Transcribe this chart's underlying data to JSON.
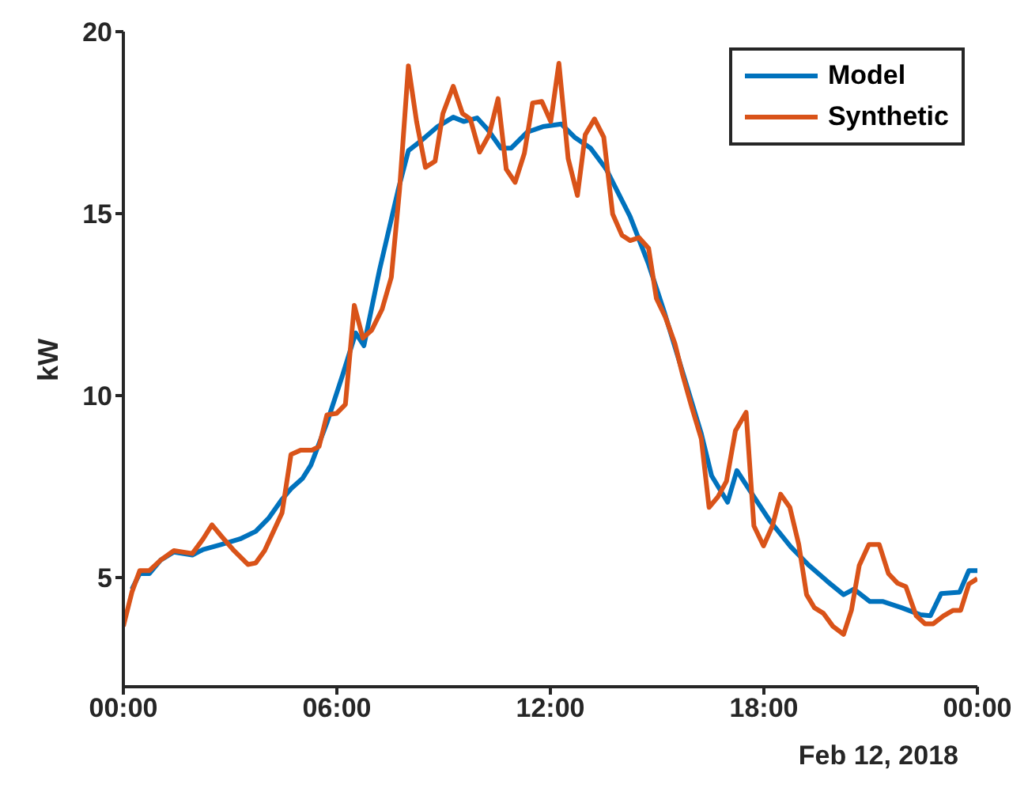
{
  "chart_data": {
    "type": "line",
    "xlabel": null,
    "ylabel": "kW",
    "annotations": [
      "Feb 12, 2018"
    ],
    "xlim": [
      0,
      24
    ],
    "xticks": [
      {
        "value": 0,
        "label": "00:00"
      },
      {
        "value": 6,
        "label": "06:00"
      },
      {
        "value": 12,
        "label": "12:00"
      },
      {
        "value": 18,
        "label": "18:00"
      },
      {
        "value": 24,
        "label": "00:00"
      }
    ],
    "ylim": [
      2,
      20
    ],
    "yticks": [
      5,
      10,
      15,
      20
    ],
    "grid": false,
    "legend": "top right",
    "marker": "none",
    "line_style": "solid",
    "series": [
      {
        "name": "Model",
        "color": "#0072bd",
        "x": [
          0.24,
          0.46,
          0.73,
          1.05,
          1.42,
          1.94,
          2.24,
          2.76,
          3.28,
          3.72,
          4.09,
          4.46,
          4.71,
          5.04,
          5.27,
          5.72,
          6.16,
          6.53,
          6.76,
          7.2,
          7.72,
          8.01,
          8.39,
          8.83,
          9.27,
          9.57,
          9.94,
          10.24,
          10.61,
          10.9,
          11.35,
          11.79,
          12.31,
          12.68,
          13.13,
          13.57,
          14.24,
          14.76,
          15.2,
          15.79,
          16.24,
          16.53,
          16.98,
          17.24,
          17.72,
          18.16,
          18.76,
          19.27,
          19.79,
          20.24,
          20.53,
          20.98,
          21.35,
          21.87,
          22.39,
          22.68,
          22.98,
          23.5,
          23.76,
          24
        ],
        "values": [
          4.68,
          5.11,
          5.11,
          5.48,
          5.7,
          5.62,
          5.77,
          5.91,
          6.06,
          6.27,
          6.64,
          7.15,
          7.44,
          7.73,
          8.09,
          9.25,
          10.56,
          11.72,
          11.37,
          13.46,
          15.64,
          16.73,
          17.02,
          17.39,
          17.65,
          17.53,
          17.63,
          17.31,
          16.8,
          16.8,
          17.24,
          17.39,
          17.46,
          17.1,
          16.8,
          16.22,
          14.92,
          13.61,
          12.3,
          10.41,
          8.96,
          7.8,
          7.07,
          7.94,
          7.22,
          6.57,
          5.84,
          5.33,
          4.89,
          4.53,
          4.68,
          4.34,
          4.34,
          4.17,
          3.98,
          3.95,
          4.56,
          4.6,
          5.19,
          5.19
        ]
      },
      {
        "name": "Synthetic",
        "color": "#d95319",
        "x": [
          0,
          0.24,
          0.46,
          0.73,
          1.05,
          1.42,
          1.94,
          2.24,
          2.49,
          2.76,
          3.08,
          3.5,
          3.72,
          3.97,
          4.46,
          4.71,
          4.98,
          5.3,
          5.5,
          5.72,
          5.99,
          6.24,
          6.49,
          6.73,
          6.98,
          7.27,
          7.53,
          7.76,
          8.01,
          8.24,
          8.49,
          8.76,
          8.98,
          9.27,
          9.53,
          9.75,
          10.01,
          10.28,
          10.53,
          10.76,
          11.01,
          11.27,
          11.5,
          11.76,
          12.01,
          12.24,
          12.5,
          12.76,
          12.98,
          13.24,
          13.5,
          13.75,
          14.01,
          14.24,
          14.49,
          14.76,
          14.98,
          15.23,
          15.5,
          15.72,
          15.97,
          16.24,
          16.46,
          16.71,
          16.95,
          17.2,
          17.5,
          17.72,
          17.99,
          18.24,
          18.47,
          18.73,
          18.98,
          19.2,
          19.42,
          19.67,
          19.94,
          20.24,
          20.46,
          20.68,
          20.95,
          21.24,
          21.5,
          21.75,
          21.99,
          22.28,
          22.53,
          22.76,
          23.05,
          23.32,
          23.53,
          23.76,
          24
        ],
        "values": [
          3.66,
          4.6,
          5.19,
          5.19,
          5.48,
          5.74,
          5.66,
          6.06,
          6.45,
          6.13,
          5.77,
          5.36,
          5.4,
          5.74,
          6.78,
          8.38,
          8.5,
          8.5,
          8.6,
          9.47,
          9.51,
          9.76,
          12.48,
          11.58,
          11.8,
          12.37,
          13.25,
          15.64,
          19.06,
          17.53,
          16.27,
          16.44,
          17.75,
          18.5,
          17.75,
          17.6,
          16.69,
          17.17,
          18.16,
          16.22,
          15.86,
          16.66,
          18.04,
          18.08,
          17.53,
          19.13,
          16.51,
          15.5,
          17.17,
          17.6,
          17.1,
          14.99,
          14.41,
          14.26,
          14.34,
          14.05,
          12.67,
          12.16,
          11.43,
          10.56,
          9.69,
          8.82,
          6.93,
          7.22,
          7.65,
          9.03,
          9.54,
          6.42,
          5.87,
          6.42,
          7.29,
          6.93,
          5.91,
          4.53,
          4.17,
          4.02,
          3.66,
          3.44,
          4.1,
          5.33,
          5.91,
          5.91,
          5.11,
          4.85,
          4.75,
          3.95,
          3.73,
          3.73,
          3.95,
          4.1,
          4.1,
          4.82,
          4.97
        ]
      }
    ]
  }
}
